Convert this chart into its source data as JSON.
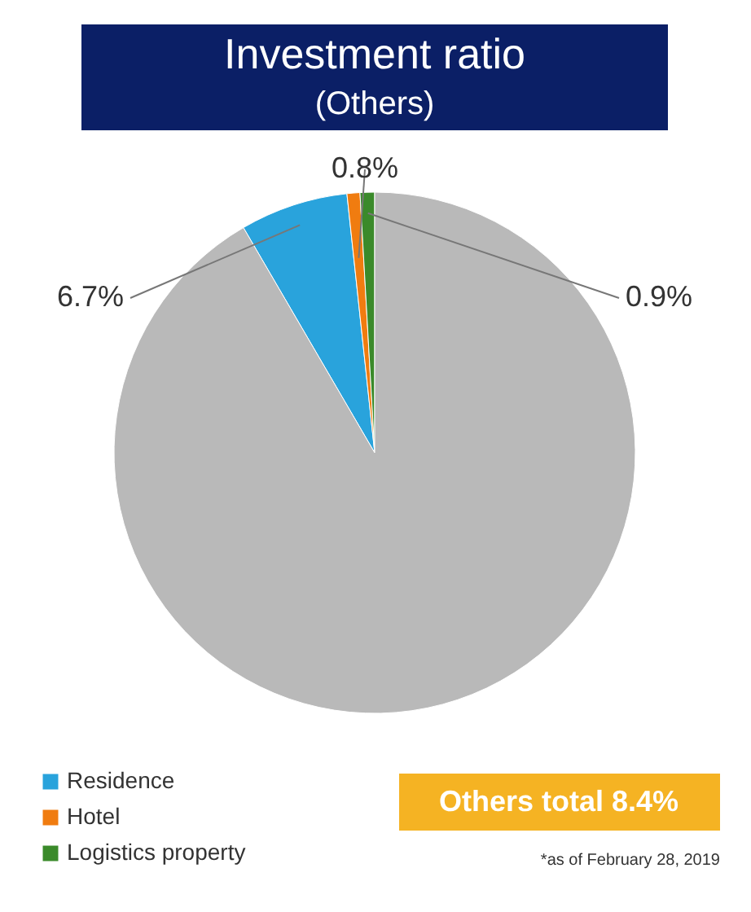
{
  "chart_data": {
    "type": "pie",
    "title": "Investment ratio",
    "subtitle": "(Others)",
    "categories": [
      "Residence",
      "Hotel",
      "Logistics property",
      null
    ],
    "values": [
      6.7,
      0.8,
      0.9,
      91.6
    ],
    "colors": [
      "#29a3dc",
      "#f07c10",
      "#3a8a2a",
      "#b9b9b9"
    ],
    "value_labels": [
      "6.7%",
      "0.8%",
      "0.9%",
      null
    ],
    "legend": "bottom left",
    "annotations": [
      "Others total 8.4%",
      "*as of February 28, 2019"
    ]
  }
}
